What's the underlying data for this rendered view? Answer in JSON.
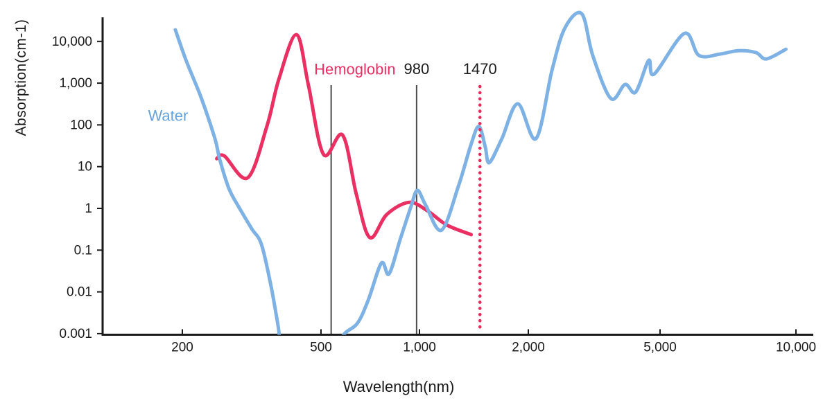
{
  "chart_data": {
    "type": "line",
    "title": "",
    "xlabel": "Wavelength(nm)",
    "ylabel": "Absorption(cm-1)",
    "x_scale": "log",
    "y_scale": "log",
    "xlim": [
      165,
      11500
    ],
    "ylim": [
      0.001,
      50000
    ],
    "grid": false,
    "x_ticks": [
      {
        "value": 200,
        "label": "200"
      },
      {
        "value": 500,
        "label": "500"
      },
      {
        "value": 1000,
        "label": "1,000"
      },
      {
        "value": 2000,
        "label": "2,000"
      },
      {
        "value": 5000,
        "label": "5,000"
      },
      {
        "value": 10000,
        "label": "10,000"
      }
    ],
    "y_ticks": [
      {
        "value": 10000,
        "label": "10,000"
      },
      {
        "value": 1000,
        "label": "1,000"
      },
      {
        "value": 100,
        "label": "100"
      },
      {
        "value": 10,
        "label": "10"
      },
      {
        "value": 1,
        "label": "1"
      },
      {
        "value": 0.1,
        "label": "0.1"
      },
      {
        "value": 0.01,
        "label": "0.01"
      },
      {
        "value": 0.001,
        "label": "0.001"
      }
    ],
    "series": [
      {
        "name": "Hemoglobin",
        "color": "#EA2F63",
        "points": [
          [
            251,
            15.5
          ],
          [
            264,
            18
          ],
          [
            308,
            5.4
          ],
          [
            350,
            95
          ],
          [
            378,
            1200
          ],
          [
            425,
            14500
          ],
          [
            460,
            900
          ],
          [
            509,
            19.6
          ],
          [
            582,
            57
          ],
          [
            641,
            2.2
          ],
          [
            705,
            0.2
          ],
          [
            795,
            0.72
          ],
          [
            930,
            1.4
          ],
          [
            1055,
            0.86
          ],
          [
            1190,
            0.4
          ],
          [
            1390,
            0.235
          ]
        ]
      },
      {
        "name": "Water",
        "color": "#7EB2E5",
        "points": [
          [
            191,
            19000
          ],
          [
            205,
            3500
          ],
          [
            226,
            470
          ],
          [
            248,
            47
          ],
          [
            256,
            15
          ],
          [
            272,
            3.0
          ],
          [
            290,
            1.1
          ],
          [
            316,
            0.33
          ],
          [
            337,
            0.14
          ],
          [
            358,
            0.016
          ],
          [
            375,
            0.0019
          ],
          [
            390,
            0.0003
          ],
          [
            440,
            5e-05
          ],
          [
            500,
            0.0001
          ],
          [
            545,
            0.0004
          ],
          [
            590,
            0.001
          ],
          [
            647,
            0.0018
          ],
          [
            698,
            0.0065
          ],
          [
            765,
            0.049
          ],
          [
            807,
            0.027
          ],
          [
            875,
            0.19
          ],
          [
            940,
            1.05
          ],
          [
            985,
            2.7
          ],
          [
            1040,
            1.2
          ],
          [
            1150,
            0.3
          ],
          [
            1280,
            3.3
          ],
          [
            1390,
            35
          ],
          [
            1460,
            92
          ],
          [
            1520,
            30
          ],
          [
            1560,
            12.5
          ],
          [
            1690,
            47
          ],
          [
            1870,
            320
          ],
          [
            2110,
            47
          ],
          [
            2360,
            2100
          ],
          [
            2580,
            21000
          ],
          [
            2900,
            46000
          ],
          [
            3130,
            4600
          ],
          [
            3550,
            430
          ],
          [
            3920,
            930
          ],
          [
            4220,
            610
          ],
          [
            4620,
            3500
          ],
          [
            4800,
            1650
          ],
          [
            5660,
            15500
          ],
          [
            6100,
            4600
          ],
          [
            6800,
            5000
          ],
          [
            7450,
            6000
          ],
          [
            8150,
            5400
          ],
          [
            8600,
            3800
          ],
          [
            9500,
            6500
          ]
        ]
      }
    ],
    "markers": [
      {
        "wavelength": 537,
        "label": "",
        "style": "solid",
        "color": "#4a4a4a"
      },
      {
        "wavelength": 980,
        "label": "980",
        "style": "solid",
        "color": "#4a4a4a"
      },
      {
        "wavelength": 1470,
        "label": "1470",
        "style": "dotted",
        "color": "#E72A5C"
      }
    ],
    "annotations": [
      {
        "text": "Water",
        "x": 182,
        "y": 170,
        "color": "#67A3DB",
        "anchor": "middle"
      },
      {
        "text": "Hemoglobin",
        "x": 845,
        "y": 2200,
        "color": "#EA2F63",
        "anchor": "end"
      }
    ],
    "legend_position": "none"
  }
}
